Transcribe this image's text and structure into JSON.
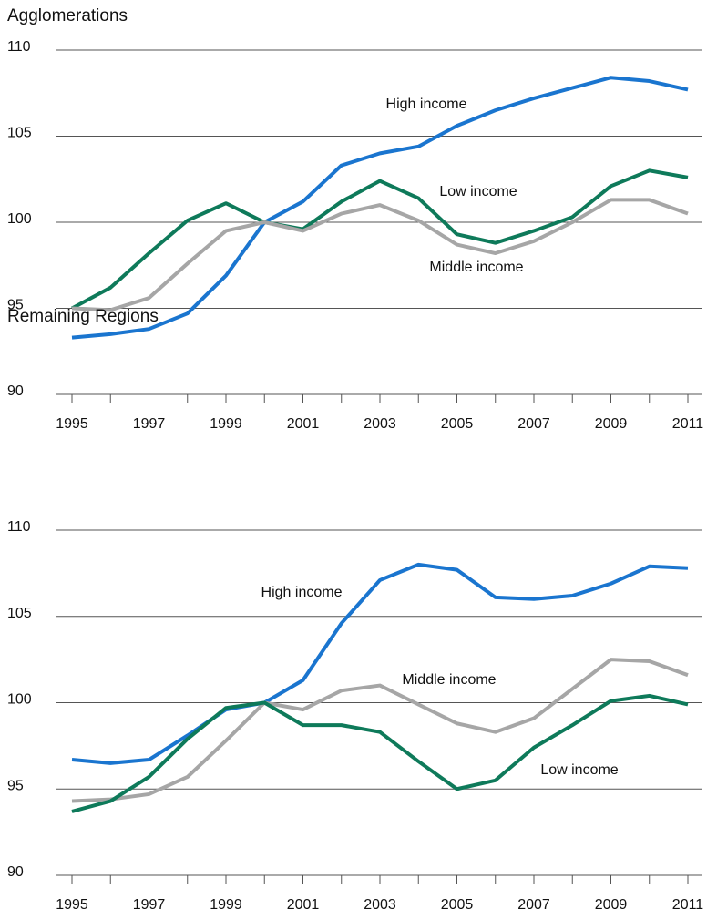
{
  "chart_data": [
    {
      "type": "line",
      "title": "Agglomerations",
      "x": [
        1995,
        1996,
        1997,
        1998,
        1999,
        2000,
        2001,
        2002,
        2003,
        2004,
        2005,
        2006,
        2007,
        2008,
        2009,
        2010,
        2011
      ],
      "xlim": [
        1995,
        2011
      ],
      "xticks": [
        1995,
        1997,
        1999,
        2001,
        2003,
        2005,
        2007,
        2009,
        2011
      ],
      "ylim": [
        90,
        110
      ],
      "yticks": [
        90,
        95,
        100,
        105,
        110
      ],
      "grid": true,
      "series": [
        {
          "name": "High income",
          "color": "#1a75cf",
          "values": [
            93.3,
            93.5,
            93.8,
            94.7,
            96.9,
            100.0,
            101.2,
            103.3,
            104.0,
            104.4,
            105.6,
            106.5,
            107.2,
            107.8,
            108.4,
            108.2,
            107.7
          ]
        },
        {
          "name": "Low income",
          "color": "#0e7a5a",
          "values": [
            95.0,
            96.2,
            98.2,
            100.1,
            101.1,
            100.0,
            99.6,
            101.2,
            102.4,
            101.4,
            99.3,
            98.8,
            99.5,
            100.3,
            102.1,
            103.0,
            102.6
          ]
        },
        {
          "name": "Middle income",
          "color": "#a6a6a6",
          "values": [
            95.0,
            94.9,
            95.6,
            97.6,
            99.5,
            100.0,
            99.5,
            100.5,
            101.0,
            100.1,
            98.7,
            98.2,
            98.9,
            100.0,
            101.3,
            101.3,
            100.5
          ]
        }
      ]
    },
    {
      "type": "line",
      "title": "Remaining Regions",
      "x": [
        1995,
        1996,
        1997,
        1998,
        1999,
        2000,
        2001,
        2002,
        2003,
        2004,
        2005,
        2006,
        2007,
        2008,
        2009,
        2010,
        2011
      ],
      "xlim": [
        1995,
        2011
      ],
      "xticks": [
        1995,
        1997,
        1999,
        2001,
        2003,
        2005,
        2007,
        2009,
        2011
      ],
      "ylim": [
        90,
        110
      ],
      "yticks": [
        90,
        95,
        100,
        105,
        110
      ],
      "grid": true,
      "series": [
        {
          "name": "High income",
          "color": "#1a75cf",
          "values": [
            96.7,
            96.5,
            96.7,
            98.1,
            99.6,
            100.0,
            101.3,
            104.6,
            107.1,
            108.0,
            107.7,
            106.1,
            106.0,
            106.2,
            106.9,
            107.9,
            107.8
          ]
        },
        {
          "name": "Middle income",
          "color": "#a6a6a6",
          "values": [
            94.3,
            94.4,
            94.7,
            95.7,
            97.8,
            100.0,
            99.6,
            100.7,
            101.0,
            99.9,
            98.8,
            98.3,
            99.1,
            100.8,
            102.5,
            102.4,
            101.6
          ]
        },
        {
          "name": "Low income",
          "color": "#0e7a5a",
          "values": [
            93.7,
            94.3,
            95.7,
            97.9,
            99.7,
            100.0,
            98.7,
            98.7,
            98.3,
            96.6,
            95.0,
            95.5,
            97.4,
            98.7,
            100.1,
            100.4,
            99.9
          ]
        }
      ]
    }
  ]
}
